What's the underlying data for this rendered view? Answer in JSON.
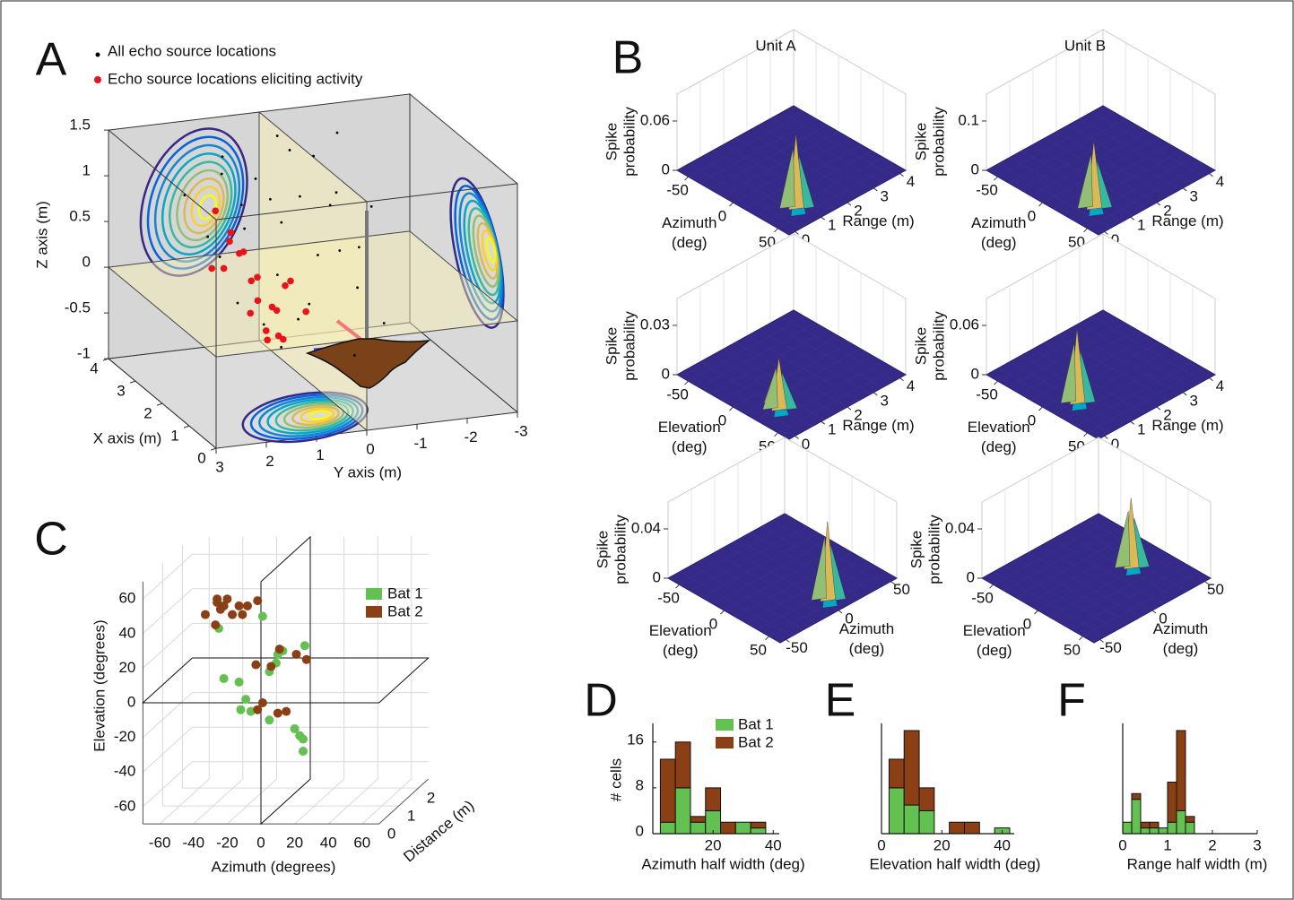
{
  "panel_labels": [
    "A",
    "B",
    "C",
    "D",
    "E",
    "F"
  ],
  "chart_data": [
    {
      "type": "scatter3d",
      "series": [
        {
          "name": "All echo source locations",
          "color": "#000000",
          "x": [
            3.5,
            3.2,
            3.8,
            3,
            3.6,
            2.8,
            3.9,
            2.5,
            3.3,
            2.2,
            3.7,
            2.9,
            3.4,
            2.6,
            3.1,
            2,
            1.8,
            2.4,
            3.5,
            1.5,
            2.7,
            3.8,
            1.2,
            2.1,
            3.6,
            3,
            1.6,
            2.3,
            3.9,
            1.4
          ],
          "y": [
            1,
            0.5,
            -0.5,
            -1,
            -1.2,
            0.2,
            0.8,
            -0.8,
            1.4,
            0.6,
            -0.2,
            -1.4,
            0.1,
            1.1,
            -0.6,
            1.5,
            0.4,
            -1.1,
            -0.9,
            0.9,
            -0.3,
            0.4,
            -0.4,
            1.8,
            1.7,
            -1.7,
            -1.2,
            0.1,
            -1.5,
            1.3
          ],
          "z": [
            1.2,
            1,
            1.1,
            0.8,
            0.5,
            0.6,
            0.9,
            0.3,
            0.4,
            0.2,
            1.3,
            0.2,
            0.7,
            0.9,
            1.2,
            0,
            -0.2,
            -0.1,
            0,
            -0.4,
            -0.3,
            0.3,
            -0.5,
            0.5,
            0.8,
            0.6,
            -0.3,
            1,
            1.2,
            -0.1
          ]
        },
        {
          "name": "Echo source locations eliciting activity",
          "color": "#e8141b",
          "x": [
            2.5,
            2.2,
            2.8,
            1.9,
            2.4,
            3,
            1.6,
            2.1,
            2.7,
            1.8,
            2.3,
            2.6,
            2,
            1.5,
            2.9,
            1.7,
            2.4,
            3.2,
            2.2,
            1.9
          ],
          "y": [
            1.2,
            1,
            0.8,
            1.3,
            0.6,
            1.1,
            0.9,
            0.5,
            1.4,
            0.7,
            1.5,
            0.4,
            1.1,
            1.2,
            0.9,
            0.3,
            1.8,
            1.3,
            0.8,
            0.5
          ],
          "z": [
            0.4,
            0.2,
            0,
            -0.1,
            -0.2,
            0.5,
            -0.3,
            0.1,
            0.2,
            -0.4,
            0.6,
            -0.3,
            0,
            -0.2,
            0.3,
            -0.1,
            0.3,
            0.7,
            -0.5,
            0.2
          ]
        }
      ],
      "xlabel": "X axis (m)",
      "ylabel": "Y axis (m)",
      "zlabel": "Z axis (m)",
      "xlim": [
        0,
        4
      ],
      "ylim": [
        -3,
        3
      ],
      "zlim": [
        -1,
        1.5
      ],
      "xticks": [
        0,
        1,
        2,
        3,
        4
      ],
      "yticks": [
        -3,
        -2,
        -1,
        0,
        1,
        2,
        3
      ],
      "zticks": [
        -1,
        -0.5,
        0,
        0.5,
        1,
        1.5
      ]
    },
    {
      "type": "surface3d",
      "title": "Unit A",
      "zlabel": [
        "Spike",
        "probability"
      ],
      "zticks": [
        0,
        0.06
      ],
      "xlabel": [
        "Azimuth",
        "(deg)"
      ],
      "xticks": [
        -50,
        0,
        50
      ],
      "ylabel": "Range (m)",
      "yticks": [
        0,
        1,
        2,
        3,
        4
      ]
    },
    {
      "type": "surface3d",
      "title": "Unit B",
      "zlabel": [
        "Spike",
        "probability"
      ],
      "zticks": [
        0,
        0.1
      ],
      "xlabel": [
        "Azimuth",
        "(deg)"
      ],
      "xticks": [
        -50,
        0,
        50
      ],
      "ylabel": "Range (m)",
      "yticks": [
        0,
        1,
        2,
        3,
        4
      ]
    },
    {
      "type": "surface3d",
      "zlabel": [
        "Spike",
        "probability"
      ],
      "zticks": [
        0,
        0.03
      ],
      "xlabel": [
        "Elevation",
        "(deg)"
      ],
      "xticks": [
        -50,
        0,
        50
      ],
      "ylabel": "Range (m)",
      "yticks": [
        0,
        1,
        2,
        3,
        4
      ]
    },
    {
      "type": "surface3d",
      "zlabel": [
        "Spike",
        "probability"
      ],
      "zticks": [
        0,
        0.06
      ],
      "xlabel": [
        "Elevation",
        "(deg)"
      ],
      "xticks": [
        -50,
        0,
        50
      ],
      "ylabel": "Range (m)",
      "yticks": [
        0,
        1,
        2,
        3,
        4
      ]
    },
    {
      "type": "surface3d",
      "zlabel": [
        "Spike",
        "probability"
      ],
      "zticks": [
        0,
        0.04
      ],
      "xlabel": [
        "Elevation",
        "(deg)"
      ],
      "xticks": [
        -50,
        0,
        50
      ],
      "ylabel": [
        "Azimuth",
        "(deg)"
      ],
      "yticks": [
        -50,
        0,
        50
      ]
    },
    {
      "type": "surface3d",
      "zlabel": [
        "Spike",
        "probability"
      ],
      "zticks": [
        0,
        0.04
      ],
      "xlabel": [
        "Elevation",
        "(deg)"
      ],
      "xticks": [
        -50,
        0,
        50
      ],
      "ylabel": [
        "Azimuth",
        "(deg)"
      ],
      "yticks": [
        -50,
        0,
        50
      ]
    },
    {
      "type": "scatter3d",
      "series": [
        {
          "name": "Bat 1",
          "color": "#62c150",
          "x": [
            1,
            -25,
            -22,
            -13,
            -9,
            -12,
            -6,
            5,
            9,
            13,
            5,
            20,
            23,
            25,
            25,
            26,
            10
          ],
          "y": [
            50,
            43,
            14,
            12,
            2,
            -4,
            -5,
            18,
            23,
            30,
            -10,
            -15,
            -19,
            -21,
            -28,
            33,
            28
          ]
        },
        {
          "name": "Bat 2",
          "color": "#8b3f14",
          "x": [
            -33,
            -26,
            -24,
            -20,
            -17,
            -13,
            -11,
            -8,
            -2,
            -27,
            -26,
            -3,
            6,
            11,
            21,
            27,
            1,
            -2,
            10,
            15,
            -22
          ],
          "y": [
            51,
            58,
            54,
            60,
            51,
            56,
            51,
            56,
            59,
            45,
            60,
            22,
            21,
            31,
            28,
            25,
            0,
            -4,
            -6,
            -5,
            56
          ]
        }
      ],
      "xlabel": "Azimuth (degrees)",
      "ylabel": "Elevation (degrees)",
      "zlabel": "Distance (m)",
      "xlim": [
        -70,
        70
      ],
      "ylim": [
        -70,
        70
      ],
      "zlim": [
        0,
        2.5
      ],
      "xticks": [
        -60,
        -40,
        -20,
        0,
        20,
        40,
        60
      ],
      "yticks": [
        -60,
        -40,
        -20,
        0,
        20,
        40,
        60
      ],
      "zticks": [
        0,
        1,
        2
      ]
    },
    {
      "type": "histogram",
      "bins": [
        2.5,
        7.5,
        12.5,
        17.5,
        22.5,
        27.5,
        32.5,
        37.5
      ],
      "series": [
        {
          "name": "Bat 1",
          "color": "#62c150",
          "values": [
            2,
            8,
            2,
            4,
            0,
            2,
            1
          ]
        },
        {
          "name": "Bat 2",
          "color": "#8b3f14",
          "values": [
            11,
            8,
            1,
            4,
            2,
            0,
            1
          ]
        }
      ],
      "xlabel": "Azimuth half width (deg)",
      "ylabel": "# cells",
      "xlim": [
        0,
        42
      ],
      "ylim": [
        0,
        18
      ],
      "xticks": [
        20,
        40
      ],
      "yticks": [
        0,
        8,
        16
      ]
    },
    {
      "type": "histogram",
      "bins": [
        2.5,
        7.5,
        12.5,
        17.5,
        22.5,
        27.5,
        32.5,
        37.5,
        42.5
      ],
      "series": [
        {
          "color": "#62c150",
          "values": [
            8,
            5,
            4,
            0,
            0,
            0,
            0,
            1
          ]
        },
        {
          "color": "#8b3f14",
          "values": [
            5,
            13,
            4,
            0,
            2,
            2,
            0,
            0
          ]
        }
      ],
      "xlabel": "Elevation half width (deg)",
      "xlim": [
        0,
        44
      ],
      "ylim": [
        0,
        18
      ],
      "xticks": [
        0,
        20,
        40
      ]
    },
    {
      "type": "histogram",
      "bins": [
        0,
        0.2,
        0.4,
        0.6,
        0.8,
        1,
        1.2,
        1.4,
        1.6
      ],
      "series": [
        {
          "color": "#62c150",
          "values": [
            2,
            6,
            1,
            1,
            1,
            2,
            4,
            2
          ]
        },
        {
          "color": "#8b3f14",
          "values": [
            0,
            1,
            1,
            1,
            0,
            7,
            14,
            1
          ]
        }
      ],
      "xlabel": "Range half width (m)",
      "xlim": [
        0,
        3
      ],
      "ylim": [
        0,
        18
      ],
      "xticks": [
        0,
        1,
        2,
        3
      ]
    }
  ]
}
